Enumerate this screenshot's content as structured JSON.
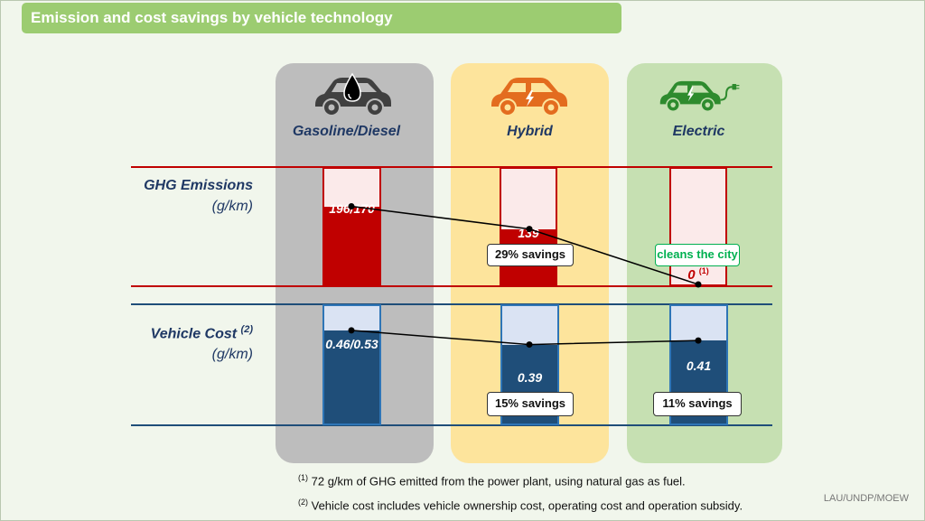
{
  "title": "Emission and cost savings by vehicle technology",
  "columns": [
    {
      "key": "gas",
      "label": "Gasoline/Diesel",
      "icon": "car-fuel-drop-icon",
      "icon_color": "#404040"
    },
    {
      "key": "hyb",
      "label": "Hybrid",
      "icon": "car-lightning-icon",
      "icon_color": "#e36c1f"
    },
    {
      "key": "ele",
      "label": "Electric",
      "icon": "car-plug-icon",
      "icon_color": "#2e8b2e"
    }
  ],
  "rows": {
    "ghg": {
      "label": "GHG Emissions",
      "unit": "(g/km)",
      "note_marker": ""
    },
    "cost": {
      "label": "Vehicle Cost",
      "unit": "(g/km)",
      "note_marker": "(2)"
    }
  },
  "chart_data": {
    "type": "bar",
    "categories": [
      "Gasoline/Diesel",
      "Hybrid",
      "Electric"
    ],
    "series": [
      {
        "name": "GHG Emissions",
        "values": [
          196,
          139,
          0
        ],
        "labels": [
          "196/170",
          "139",
          "0"
        ],
        "label_marker": [
          "",
          "",
          "(1)"
        ],
        "annotations": [
          "",
          "29% savings",
          "cleans the city"
        ],
        "ylim": [
          0,
          290
        ]
      },
      {
        "name": "Vehicle Cost",
        "values": [
          0.46,
          0.39,
          0.41
        ],
        "labels": [
          "0.46/0.53",
          "0.39",
          "0.41"
        ],
        "label_marker": [
          "",
          "",
          ""
        ],
        "annotations": [
          "",
          "15% savings",
          "11% savings"
        ],
        "ylim": [
          0,
          0.58
        ]
      }
    ]
  },
  "footnotes": [
    {
      "marker": "(1)",
      "text": "72 g/km of GHG  emitted from the power plant, using natural gas as fuel."
    },
    {
      "marker": "(2)",
      "text": "Vehicle cost includes vehicle ownership cost, operating cost and operation subsidy."
    }
  ],
  "credit": "LAU/UNDP/MOEW"
}
